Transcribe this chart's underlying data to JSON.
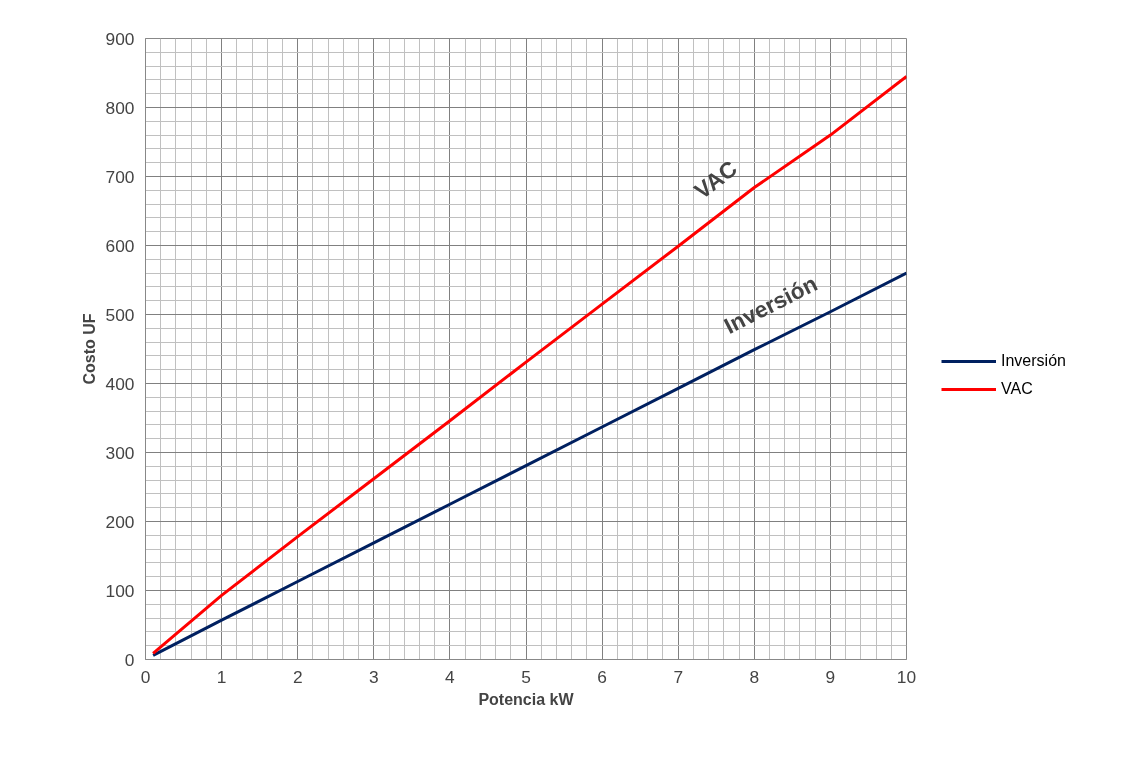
{
  "chart_data": {
    "type": "line",
    "xlabel": "Potencia kW",
    "ylabel": "Costo UF",
    "x": [
      0.1,
      1,
      2,
      3,
      4,
      5,
      6,
      7,
      8,
      9,
      10
    ],
    "series": [
      {
        "name": "Inversión",
        "color": "#002060",
        "values": [
          6,
          57,
          113,
          169,
          225,
          281,
          337,
          393,
          449,
          504,
          560
        ]
      },
      {
        "name": "VAC",
        "color": "#ff0000",
        "values": [
          9,
          93,
          178,
          262,
          346,
          431,
          515,
          599,
          684,
          760,
          845
        ]
      }
    ],
    "xlim": [
      0,
      10
    ],
    "xticks": [
      0,
      1,
      2,
      3,
      4,
      5,
      6,
      7,
      8,
      9,
      10
    ],
    "ylim": [
      0,
      900
    ],
    "yticks": [
      0,
      100,
      200,
      300,
      400,
      500,
      600,
      700,
      800,
      900
    ],
    "grid": true,
    "legend": "right",
    "marker": "none",
    "line_style": "solid",
    "annotations": [
      "VAC",
      "Inversión"
    ]
  }
}
